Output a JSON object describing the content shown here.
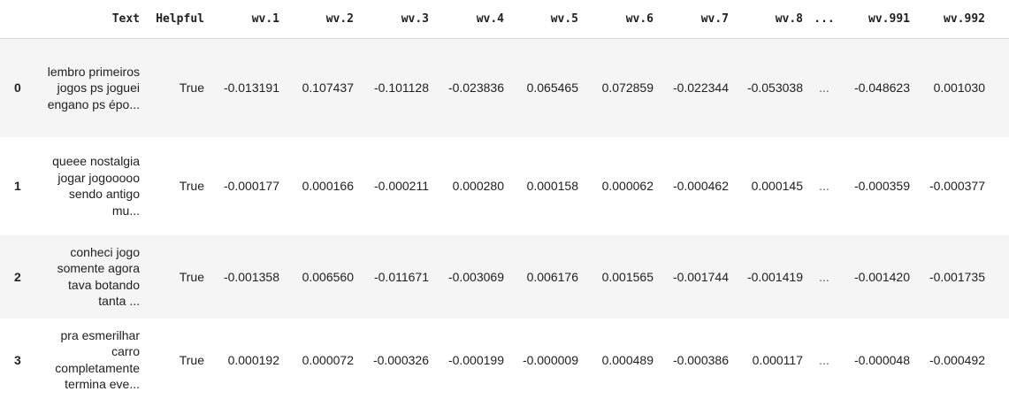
{
  "table": {
    "index_header": "",
    "columns": [
      "Text",
      "Helpful",
      "wv.1",
      "wv.2",
      "wv.3",
      "wv.4",
      "wv.5",
      "wv.6",
      "wv.7",
      "wv.8",
      "...",
      "wv.991",
      "wv.992"
    ],
    "rows": [
      {
        "index": "0",
        "cells": [
          "lembro primeiros jogos ps joguei engano ps épo...",
          "True",
          "-0.013191",
          "0.107437",
          "-0.101128",
          "-0.023836",
          "0.065465",
          "0.072859",
          "-0.022344",
          "-0.053038",
          "...",
          "-0.048623",
          "0.001030"
        ]
      },
      {
        "index": "1",
        "cells": [
          "queee nostalgia jogar jogooooo sendo antigo mu...",
          "True",
          "-0.000177",
          "0.000166",
          "-0.000211",
          "0.000280",
          "0.000158",
          "0.000062",
          "-0.000462",
          "0.000145",
          "...",
          "-0.000359",
          "-0.000377"
        ]
      },
      {
        "index": "2",
        "cells": [
          "conheci jogo somente agora tava botando tanta ...",
          "True",
          "-0.001358",
          "0.006560",
          "-0.011671",
          "-0.003069",
          "0.006176",
          "0.001565",
          "-0.001744",
          "-0.001419",
          "...",
          "-0.001420",
          "-0.001735"
        ]
      },
      {
        "index": "3",
        "cells": [
          "pra esmerilhar carro completamente termina eve...",
          "True",
          "0.000192",
          "0.000072",
          "-0.000326",
          "-0.000199",
          "-0.000009",
          "0.000489",
          "-0.000386",
          "0.000117",
          "...",
          "-0.000048",
          "-0.000492"
        ]
      }
    ]
  }
}
